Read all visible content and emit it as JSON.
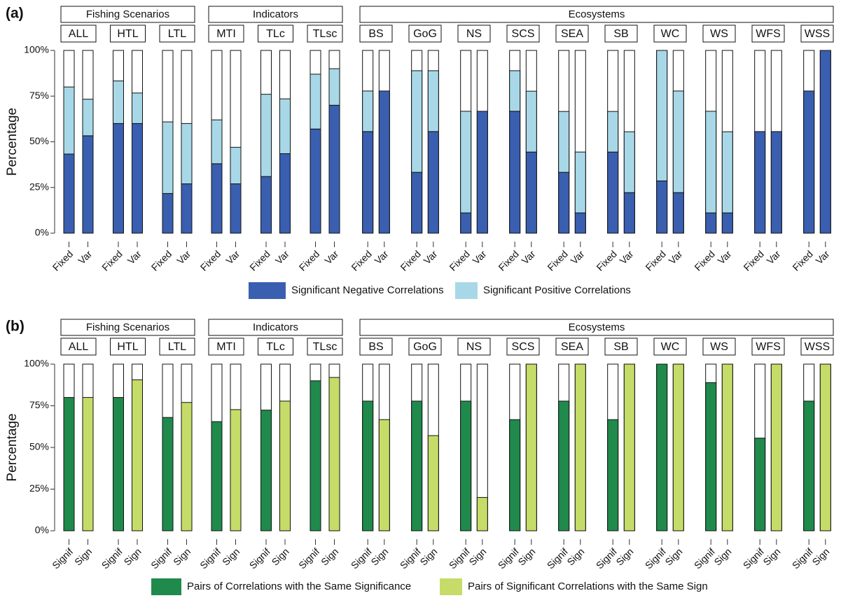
{
  "chart_data": [
    {
      "type": "stacked-bar",
      "label": "(a)",
      "ylabel": "Percentage",
      "groups": [
        {
          "name": "Fishing Scenarios",
          "categories": [
            "ALL",
            "HTL",
            "LTL"
          ]
        },
        {
          "name": "Indicators",
          "categories": [
            "MTI",
            "TLc",
            "TLsc"
          ]
        },
        {
          "name": "Ecosystems",
          "categories": [
            "BS",
            "GoG",
            "NS",
            "SCS",
            "SEA",
            "SB",
            "WC",
            "WS",
            "WFS",
            "WSS"
          ]
        }
      ],
      "bars": [
        "Fixed",
        "Var"
      ],
      "series": [
        {
          "name": "Significant Negative Correlations",
          "color": "#3a5fb0",
          "values": [
            [
              43.3,
              53.3
            ],
            [
              60,
              60
            ],
            [
              21.7,
              27
            ],
            [
              38,
              27
            ],
            [
              31,
              43.5
            ],
            [
              57,
              70
            ],
            [
              55.6,
              77.8
            ],
            [
              33.3,
              55.6
            ],
            [
              11.1,
              66.7
            ],
            [
              66.7,
              44.4
            ],
            [
              33.3,
              11.1
            ],
            [
              44.4,
              22.2
            ],
            [
              28.6,
              22.2
            ],
            [
              11.1,
              11.1
            ],
            [
              55.6,
              55.6
            ],
            [
              77.8,
              100
            ]
          ]
        },
        {
          "name": "Significant Positive Correlations",
          "color": "#a8d8e8",
          "values": [
            [
              36.7,
              20
            ],
            [
              23.3,
              16.7
            ],
            [
              39.2,
              33
            ],
            [
              24,
              20
            ],
            [
              45,
              30
            ],
            [
              30,
              20
            ],
            [
              22.2,
              0
            ],
            [
              55.6,
              33.3
            ],
            [
              55.6,
              0
            ],
            [
              22.2,
              33.3
            ],
            [
              33.3,
              33.3
            ],
            [
              22.2,
              33.3
            ],
            [
              71.4,
              55.6
            ],
            [
              55.6,
              44.4
            ],
            [
              0,
              0
            ],
            [
              0,
              0
            ]
          ]
        }
      ],
      "ylim": [
        0,
        100
      ],
      "yticks": [
        {
          "value": 0,
          "label": "0%"
        },
        {
          "value": 25,
          "label": "25%"
        },
        {
          "value": 50,
          "label": "50%"
        },
        {
          "value": 75,
          "label": "75%"
        },
        {
          "value": 100,
          "label": "100%"
        }
      ]
    },
    {
      "type": "grouped-bar",
      "label": "(b)",
      "ylabel": "Percentage",
      "groups": [
        {
          "name": "Fishing Scenarios",
          "categories": [
            "ALL",
            "HTL",
            "LTL"
          ]
        },
        {
          "name": "Indicators",
          "categories": [
            "MTI",
            "TLc",
            "TLsc"
          ]
        },
        {
          "name": "Ecosystems",
          "categories": [
            "BS",
            "GoG",
            "NS",
            "SCS",
            "SEA",
            "SB",
            "WC",
            "WS",
            "WFS",
            "WSS"
          ]
        }
      ],
      "bars": [
        "Signif",
        "Sign"
      ],
      "series": [
        {
          "name": "Pairs of Correlations with the Same Significance",
          "color": "#1f8a4c",
          "values": [
            80,
            80,
            68,
            65.5,
            72.4,
            90,
            77.8,
            77.8,
            77.8,
            66.7,
            77.8,
            66.7,
            100,
            88.9,
            55.6,
            77.8
          ]
        },
        {
          "name": "Pairs of Significant Correlations with the Same Sign",
          "color": "#c5dc68",
          "values": [
            80,
            90.6,
            77,
            72.7,
            77.8,
            92,
            66.7,
            57.1,
            20,
            100,
            100,
            100,
            100,
            100,
            100,
            100
          ]
        }
      ],
      "ylim": [
        0,
        100
      ],
      "yticks": [
        {
          "value": 0,
          "label": "0%"
        },
        {
          "value": 25,
          "label": "25%"
        },
        {
          "value": 50,
          "label": "50%"
        },
        {
          "value": 75,
          "label": "75%"
        },
        {
          "value": 100,
          "label": "100%"
        }
      ]
    }
  ]
}
